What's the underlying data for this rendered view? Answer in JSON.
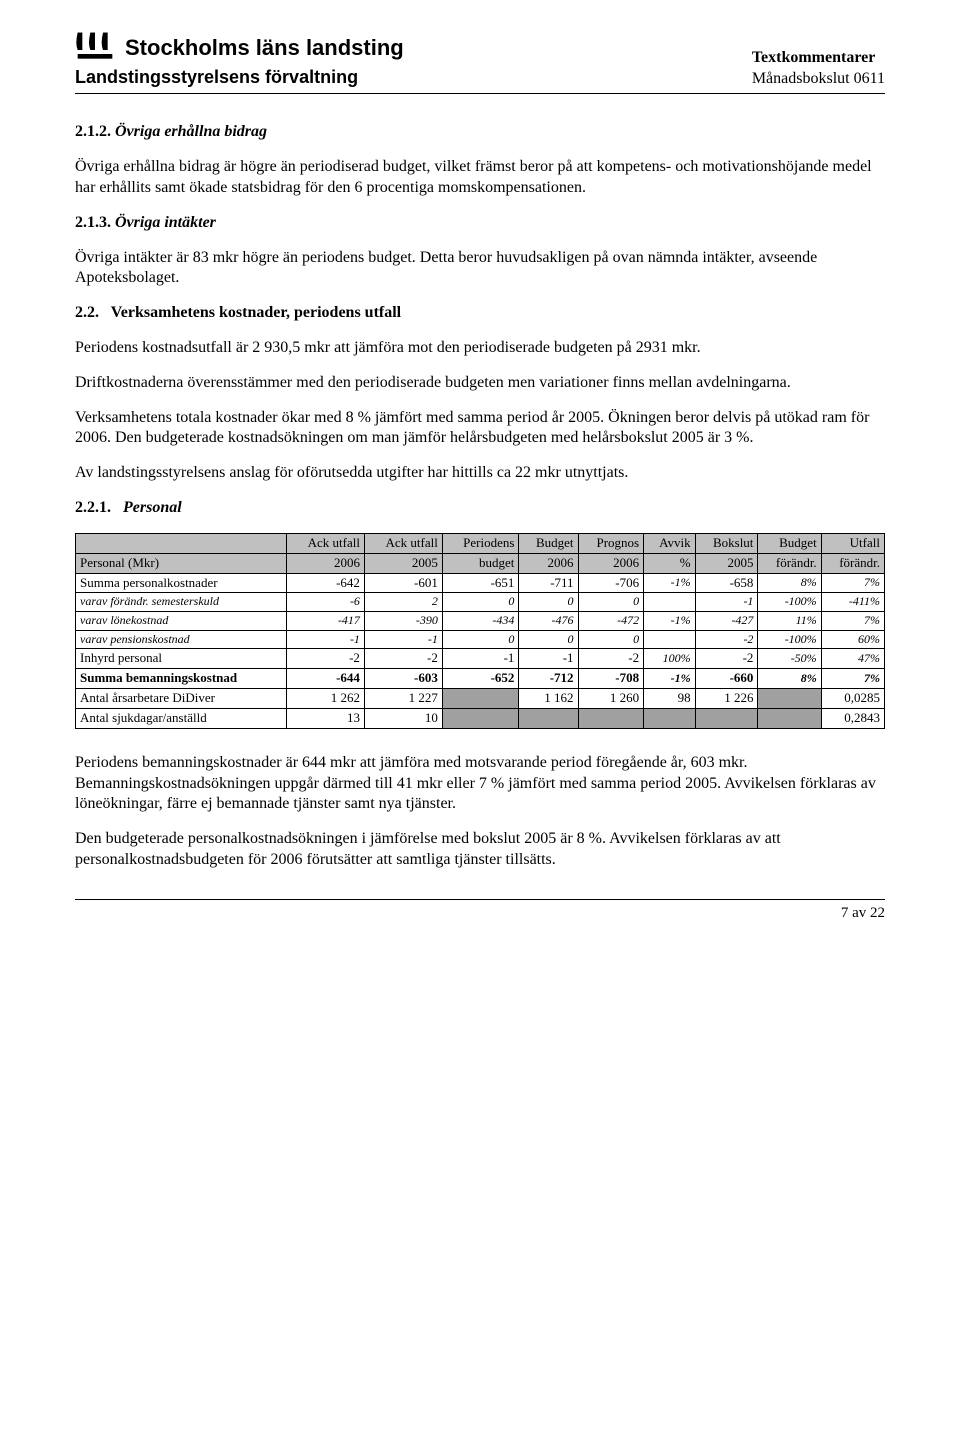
{
  "header": {
    "org_name": "Stockholms läns landsting",
    "admin": "Landstingsstyrelsens förvaltning",
    "right_title": "Textkommentarer",
    "right_sub": "Månadsbokslut 0611"
  },
  "sections": {
    "s212": {
      "num": "2.1.2.",
      "title": "Övriga erhållna bidrag",
      "p1": "Övriga erhållna bidrag är högre än periodiserad budget, vilket främst beror på att kompetens- och motivationshöjande medel har erhållits samt ökade statsbidrag för den 6 procentiga momskompensationen."
    },
    "s213": {
      "num": "2.1.3.",
      "title": "Övriga intäkter",
      "p1": "Övriga intäkter är 83 mkr högre än periodens budget. Detta beror huvudsakligen på ovan nämnda intäkter, avseende Apoteksbolaget."
    },
    "s22": {
      "num": "2.2.",
      "title": "Verksamhetens kostnader, periodens utfall",
      "p1": "Periodens kostnadsutfall är 2 930,5 mkr att jämföra mot den periodiserade budgeten på 2931 mkr.",
      "p2": "Driftkostnaderna överensstämmer med den periodiserade budgeten men variationer finns mellan avdelningarna.",
      "p3": "Verksamhetens totala kostnader ökar med 8 % jämfört med samma period år 2005. Ökningen beror delvis på utökad ram för 2006. Den budgeterade kostnadsökningen om man jämför helårsbudgeten med helårsbokslut 2005 är 3 %.",
      "p4": "Av landstingsstyrelsens anslag för oförutsedda utgifter har hittills ca 22 mkr utnyttjats."
    },
    "s221": {
      "num": "2.2.1.",
      "title": "Personal"
    },
    "after_table": {
      "p1": "Periodens bemanningskostnader är 644 mkr att jämföra med motsvarande period föregående år, 603 mkr. Bemanningskostnadsökningen uppgår därmed till 41 mkr eller 7 % jämfört med samma period 2005. Avvikelsen förklaras av löneökningar, färre ej bemannade tjänster samt nya tjänster.",
      "p2": "Den budgeterade personalkostnadsökningen i jämförelse med bokslut 2005 är 8 %. Avvikelsen förklaras av att personalkostnadsbudgeten för 2006 förutsätter att samtliga tjänster tillsätts."
    }
  },
  "table": {
    "head_row1": [
      "",
      "Ack utfall",
      "Ack utfall",
      "Periodens",
      "Budget",
      "Prognos",
      "Avvik",
      "Bokslut",
      "Budget",
      "Utfall"
    ],
    "head_row2": [
      "Personal (Mkr)",
      "2006",
      "2005",
      "budget",
      "2006",
      "2006",
      "%",
      "2005",
      "förändr.",
      "förändr."
    ],
    "rows": [
      {
        "label": "Summa personalkostnader",
        "c": [
          "-642",
          "-601",
          "-651",
          "-711",
          "-706",
          "-1%",
          "-658",
          "8%",
          "7%"
        ],
        "bold": false,
        "italic": false,
        "pct_cols": [
          5,
          7,
          8
        ]
      },
      {
        "label": "  varav förändr. semesterskuld",
        "c": [
          "-6",
          "2",
          "0",
          "0",
          "0",
          "",
          "-1",
          "-100%",
          "-411%"
        ],
        "bold": false,
        "italic": true,
        "pct_cols": [
          7,
          8
        ]
      },
      {
        "label": "  varav lönekostnad",
        "c": [
          "-417",
          "-390",
          "-434",
          "-476",
          "-472",
          "-1%",
          "-427",
          "11%",
          "7%"
        ],
        "bold": false,
        "italic": true,
        "pct_cols": [
          5,
          7,
          8
        ]
      },
      {
        "label": "  varav pensionskostnad",
        "c": [
          "-1",
          "-1",
          "0",
          "0",
          "0",
          "",
          "-2",
          "-100%",
          "60%"
        ],
        "bold": false,
        "italic": true,
        "pct_cols": [
          7,
          8
        ]
      },
      {
        "label": "Inhyrd personal",
        "c": [
          "-2",
          "-2",
          "-1",
          "-1",
          "-2",
          "100%",
          "-2",
          "-50%",
          "47%"
        ],
        "bold": false,
        "italic": false,
        "pct_cols": [
          5,
          7,
          8
        ]
      },
      {
        "label": "Summa bemanningskostnad",
        "c": [
          "-644",
          "-603",
          "-652",
          "-712",
          "-708",
          "-1%",
          "-660",
          "8%",
          "7%"
        ],
        "bold": true,
        "italic": false,
        "pct_cols": [
          5,
          7,
          8
        ]
      },
      {
        "label": "Antal årsarbetare DiDiver",
        "c": [
          "1 262",
          "1 227",
          "SHADE",
          "1 162",
          "1 260",
          "98",
          "1 226",
          "SHADE",
          "0,0285"
        ],
        "bold": false,
        "italic": false,
        "pct_cols": []
      },
      {
        "label": "Antal sjukdagar/anställd",
        "c": [
          "13",
          "10",
          "SHADE",
          "SHADE",
          "SHADE",
          "SHADE",
          "SHADE",
          "SHADE",
          "0,2843"
        ],
        "bold": false,
        "italic": false,
        "pct_cols": []
      }
    ]
  },
  "page_num": "7 av 22"
}
